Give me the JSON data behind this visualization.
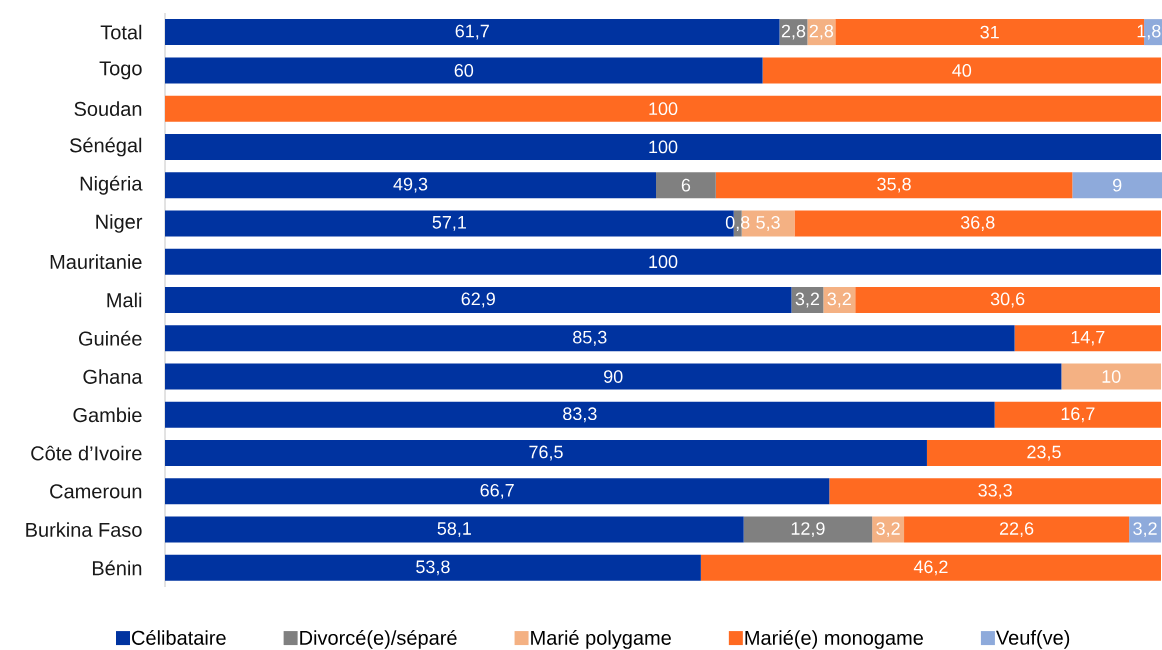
{
  "chart_data": {
    "type": "bar",
    "orientation": "horizontal",
    "stacked": true,
    "legend": "bottom",
    "categories": [
      "Total",
      "Togo",
      "Soudan",
      "Sénégal",
      "Nigéria",
      "Niger",
      "Mauritanie",
      "Mali",
      "Guinée",
      "Ghana",
      "Gambie",
      "Côte d’Ivoire",
      "Cameroun",
      "Burkina Faso",
      "Bénin"
    ],
    "series": [
      {
        "name": "Célibataire",
        "color": "#0033a0",
        "values": [
          61.7,
          60,
          null,
          100,
          49.3,
          57.1,
          100,
          62.9,
          85.3,
          90,
          83.3,
          76.5,
          66.7,
          58.1,
          53.8
        ],
        "value_labels": [
          "61,7",
          "60",
          null,
          "100",
          "49,3",
          "57,1",
          "100",
          "62,9",
          "85,3",
          "90",
          "83,3",
          "76,5",
          "66,7",
          "58,1",
          "53,8"
        ]
      },
      {
        "name": "Divorcé(e)/séparé",
        "color": "#808080",
        "values": [
          2.8,
          null,
          null,
          null,
          6,
          0.8,
          null,
          3.2,
          null,
          null,
          null,
          null,
          null,
          12.9,
          null
        ],
        "value_labels": [
          "2,8",
          null,
          null,
          null,
          "6",
          "0,8",
          null,
          "3,2",
          null,
          null,
          null,
          null,
          null,
          "12,9",
          null
        ]
      },
      {
        "name": "Marié polygame",
        "color": "#f4b183",
        "values": [
          2.8,
          null,
          null,
          null,
          null,
          5.3,
          null,
          3.2,
          null,
          10,
          null,
          null,
          null,
          3.2,
          null
        ],
        "value_labels": [
          "2,8",
          null,
          null,
          null,
          null,
          "5,3",
          null,
          "3,2",
          null,
          "10",
          null,
          null,
          null,
          "3,2",
          null
        ]
      },
      {
        "name": "Marié(e) monogame",
        "color": "#ff6a21",
        "values": [
          31,
          40,
          100,
          null,
          35.8,
          36.8,
          null,
          30.6,
          14.7,
          null,
          16.7,
          23.5,
          33.3,
          22.6,
          46.2
        ],
        "value_labels": [
          "31",
          "40",
          "100",
          null,
          "35,8",
          "36,8",
          null,
          "30,6",
          "14,7",
          null,
          "16,7",
          "23,5",
          "33,3",
          "22,6",
          "46,2"
        ]
      },
      {
        "name": "Veuf(ve)",
        "color": "#8eaadb",
        "values": [
          1.8,
          null,
          null,
          null,
          9,
          null,
          null,
          null,
          null,
          null,
          null,
          null,
          null,
          3.2,
          null
        ],
        "value_labels": [
          "1,8",
          null,
          null,
          null,
          "9",
          null,
          null,
          null,
          null,
          null,
          null,
          null,
          null,
          "3,2",
          null
        ]
      }
    ]
  }
}
